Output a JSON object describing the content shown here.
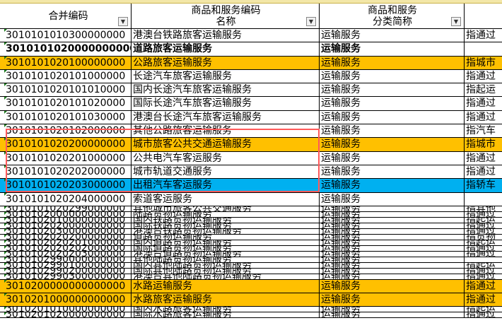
{
  "colors": {
    "highlight_orange": "#FFC000",
    "highlight_blue": "#00B0F0",
    "selection_box": "#FF5A5A"
  },
  "headers": [
    {
      "line1": "合并编码",
      "line2": "",
      "filter": "dropdown"
    },
    {
      "line1": "商品和服务编码",
      "line2": "名称",
      "filter": "dropdown"
    },
    {
      "line1": "商品和服务",
      "line2": "分类简称",
      "filter": "filter-active"
    },
    {
      "line1": "",
      "line2": "",
      "filter": ""
    }
  ],
  "rows": [
    {
      "code": "3010101010300000000",
      "name": "港澳台铁路旅客运输服务",
      "cat": "运输服务",
      "desc": "指通过",
      "style": "normal"
    },
    {
      "code": "3010101020000000000",
      "name": "道路旅客运输服务",
      "cat": "运输服务",
      "desc": "",
      "style": "bold"
    },
    {
      "code": "3010101020100000000",
      "name": "公路旅客运输服务",
      "cat": "运输服务",
      "desc": "指城市",
      "style": "orange"
    },
    {
      "code": "3010101020101000000",
      "name": "长途汽车旅客运输服务",
      "cat": "运输服务",
      "desc": "指通过",
      "style": "normal"
    },
    {
      "code": "3010101020101010000",
      "name": "国内长途汽车旅客运输服务",
      "cat": "运输服务",
      "desc": "指起运",
      "style": "normal"
    },
    {
      "code": "3010101020101020000",
      "name": "国际长途汽车旅客运输服务",
      "cat": "运输服务",
      "desc": "指通过",
      "style": "normal"
    },
    {
      "code": "3010101020101030000",
      "name": "港澳台长途汽车旅客运输服务",
      "cat": "运输服务",
      "desc": "指通过",
      "style": "normal"
    },
    {
      "code": "3010101020102000000",
      "name": "其他公路旅客运输服务",
      "cat": "运输服务",
      "desc": "指汽车",
      "style": "normal"
    },
    {
      "code": "3010101020200000000",
      "name": "城市旅客公共交通运输服务",
      "cat": "运输服务",
      "desc": "指城市",
      "style": "orange"
    },
    {
      "code": "3010101020201000000",
      "name": "公共电汽车客运服务",
      "cat": "运输服务",
      "desc": "指通过",
      "style": "normal"
    },
    {
      "code": "3010101020202000000",
      "name": "城市轨道交通服务",
      "cat": "运输服务",
      "desc": "指通过",
      "style": "normal"
    },
    {
      "code": "3010101020203000000",
      "name": "出租汽车客运服务",
      "cat": "运输服务",
      "desc": "指轿车",
      "style": "blue"
    },
    {
      "code": "3010101020204000000",
      "name": "索道客运服务",
      "cat": "运输服务",
      "desc": "",
      "style": "normal"
    },
    {
      "code": "3010101020299000000",
      "name": "其他城市旅客公共交通服务",
      "cat": "运输服务",
      "desc": "指其他",
      "style": "squash"
    },
    {
      "code": "3010102000000000000",
      "name": "陆路货物运输服务",
      "cat": "运输服务",
      "desc": "指通过",
      "style": "squash"
    },
    {
      "code": "3010102010000000000",
      "name": "国内铁路货物运输服务",
      "cat": "运输服务",
      "desc": "指起运",
      "style": "squash"
    },
    {
      "code": "3010102020000000000",
      "name": "国际铁路货物运输服务",
      "cat": "运输服务",
      "desc": "指通过",
      "style": "squash"
    },
    {
      "code": "3010102030000000000",
      "name": "港澳台铁路货物运输服务",
      "cat": "运输服务",
      "desc": "指通过",
      "style": "squash"
    },
    {
      "code": "3010102020200000000",
      "name": "道路货物运输服务",
      "cat": "运输服务",
      "desc": "指货物",
      "style": "squash"
    },
    {
      "code": "3010102020201000000",
      "name": "国内道路货物运输服务",
      "cat": "运输服务",
      "desc": "指起运",
      "style": "squash"
    },
    {
      "code": "3010102020202000000",
      "name": "国际道路货物运输服务",
      "cat": "运输服务",
      "desc": "指通过",
      "style": "squash"
    },
    {
      "code": "3010102020203000000",
      "name": "港澳台道路货物运输服务",
      "cat": "运输服务",
      "desc": "指通过",
      "style": "squash"
    },
    {
      "code": "3010102990000000000",
      "name": "其他陆路货物运输服务",
      "cat": "运输服务",
      "desc": "",
      "style": "squash"
    },
    {
      "code": "3010102990100000000",
      "name": "国内其他陆路货物运输服务",
      "cat": "运输服务",
      "desc": "指起运",
      "style": "squash"
    },
    {
      "code": "3010102990200000000",
      "name": "国际其他陆路货物运输服务",
      "cat": "运输服务",
      "desc": "指通过",
      "style": "squash"
    },
    {
      "code": "3010102990300000000",
      "name": "港澳台其他陆路货物运输服务",
      "cat": "运输服务",
      "desc": "指通过",
      "style": "squash"
    },
    {
      "code": "3010200000000000000",
      "name": "水路运输服务",
      "cat": "运输服务",
      "desc": "指通过",
      "style": "orange"
    },
    {
      "code": "3010201000000000000",
      "name": "水路旅客运输服务",
      "cat": "运输服务",
      "desc": "指通过",
      "style": "orange"
    },
    {
      "code": "3010201010000000000",
      "name": "国内水路旅客运输服务",
      "cat": "运输服务",
      "desc": "指起运",
      "style": "squash"
    },
    {
      "code": "3010201020000000000",
      "name": "国际水路旅客运输服务",
      "cat": "运输服务",
      "desc": "指通过",
      "style": "squash"
    }
  ]
}
